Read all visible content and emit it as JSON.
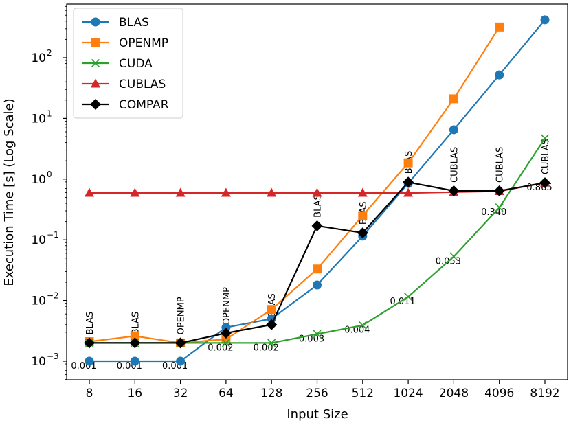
{
  "chart_data": {
    "type": "line",
    "title": "",
    "xlabel": "Input Size",
    "ylabel": "Execution Time [s] (Log Scale)",
    "yscale": "log",
    "ylim": [
      0.0007,
      700
    ],
    "categories": [
      "8",
      "16",
      "32",
      "64",
      "128",
      "256",
      "512",
      "1024",
      "2048",
      "4096",
      "8192"
    ],
    "y_ticks": [
      {
        "value": 0.001,
        "base": "10",
        "exp": "−3"
      },
      {
        "value": 0.01,
        "base": "10",
        "exp": "−2"
      },
      {
        "value": 0.1,
        "base": "10",
        "exp": "−1"
      },
      {
        "value": 1,
        "base": "10",
        "exp": "0"
      },
      {
        "value": 10,
        "base": "10",
        "exp": "1"
      },
      {
        "value": 100,
        "base": "10",
        "exp": "2"
      }
    ],
    "legend_position": "top-left",
    "series": [
      {
        "name": "BLAS",
        "color": "#1f77b4",
        "marker": "circle",
        "values": [
          0.001,
          0.001,
          0.001,
          0.0036,
          0.005,
          0.018,
          0.115,
          0.85,
          6.5,
          52,
          420
        ]
      },
      {
        "name": "OPENMP",
        "color": "#ff7f0e",
        "marker": "square",
        "values": [
          0.0021,
          0.0026,
          0.002,
          0.0023,
          0.0071,
          0.033,
          0.25,
          1.85,
          21,
          320,
          null
        ]
      },
      {
        "name": "CUDA",
        "color": "#2ca02c",
        "marker": "x",
        "values": [
          0.002,
          0.002,
          0.002,
          0.002,
          0.002,
          0.0028,
          0.0039,
          0.0115,
          0.053,
          0.34,
          4.7
        ]
      },
      {
        "name": "CUBLAS",
        "color": "#d62728",
        "marker": "triangle",
        "values": [
          0.59,
          0.59,
          0.59,
          0.59,
          0.59,
          0.59,
          0.59,
          0.59,
          0.61,
          0.63,
          0.87
        ]
      },
      {
        "name": "COMPAR",
        "color": "#000000",
        "marker": "diamond",
        "values": [
          0.002,
          0.002,
          0.002,
          0.0029,
          0.004,
          0.17,
          0.13,
          0.89,
          0.64,
          0.64,
          0.87
        ]
      }
    ],
    "annotations_best": [
      "BLAS",
      "BLAS",
      "OPENMP",
      "OPENMP",
      "BLAS",
      "BLAS",
      "BLAS",
      "BLAS",
      "CUBLAS",
      "CUBLAS",
      "CUBLAS"
    ],
    "annotations_time": [
      "0.001",
      "0.001",
      "0.001",
      "0.002",
      "0.002",
      "0.003",
      "0.004",
      "0.011",
      "0.053",
      "0.340",
      "0.865"
    ]
  }
}
